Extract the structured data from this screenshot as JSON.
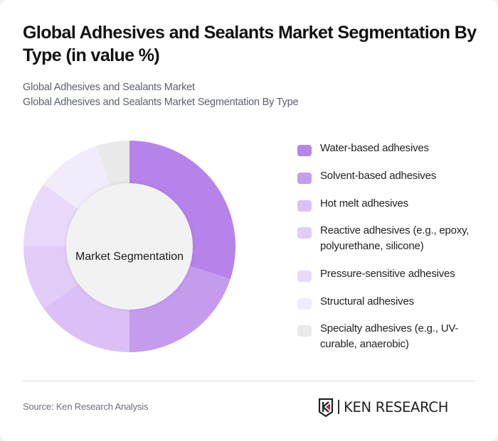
{
  "header": {
    "title": "Global Adhesives and Sealants Market Segmentation By Type (in value %)",
    "subtitle_line1": "Global Adhesives and Sealants Market",
    "subtitle_line2": "Global Adhesives and Sealants Market Segmentation By Type"
  },
  "chart": {
    "center_label": "Market Segmentation"
  },
  "legend": [
    {
      "label": "Water-based adhesives",
      "color": "#B683EA"
    },
    {
      "label": "Solvent-based adhesives",
      "color": "#C59BEE"
    },
    {
      "label": "Hot melt adhesives",
      "color": "#DAC0F6"
    },
    {
      "label": "Reactive adhesives (e.g., epoxy, polyurethane, silicone)",
      "color": "#E1CCF7"
    },
    {
      "label": "Pressure-sensitive adhesives",
      "color": "#E8D9FA"
    },
    {
      "label": "Structural adhesives",
      "color": "#F2EBFC"
    },
    {
      "label": "Specialty adhesives (e.g., UV-curable, anaerobic)",
      "color": "#E9E9E9"
    }
  ],
  "footer": {
    "source": "Source: Ken Research Analysis",
    "brand": "KEN RESEARCH"
  },
  "chart_data": {
    "type": "pie",
    "title": "Global Adhesives and Sealants Market Segmentation By Type (in value %)",
    "subtitle": "Global Adhesives and Sealants Market Segmentation By Type",
    "center_label": "Market Segmentation",
    "donut": true,
    "categories": [
      "Water-based adhesives",
      "Solvent-based adhesives",
      "Hot melt adhesives",
      "Reactive adhesives (e.g., epoxy, polyurethane, silicone)",
      "Pressure-sensitive adhesives",
      "Structural adhesives",
      "Specialty adhesives (e.g., UV-curable, anaerobic)"
    ],
    "values": [
      30,
      20,
      15,
      10,
      10,
      10,
      5
    ],
    "colors": [
      "#B683EA",
      "#C59BEE",
      "#DAC0F6",
      "#E1CCF7",
      "#E8D9FA",
      "#F2EBFC",
      "#E9E9E9"
    ],
    "legend_position": "right",
    "unit": "%"
  }
}
